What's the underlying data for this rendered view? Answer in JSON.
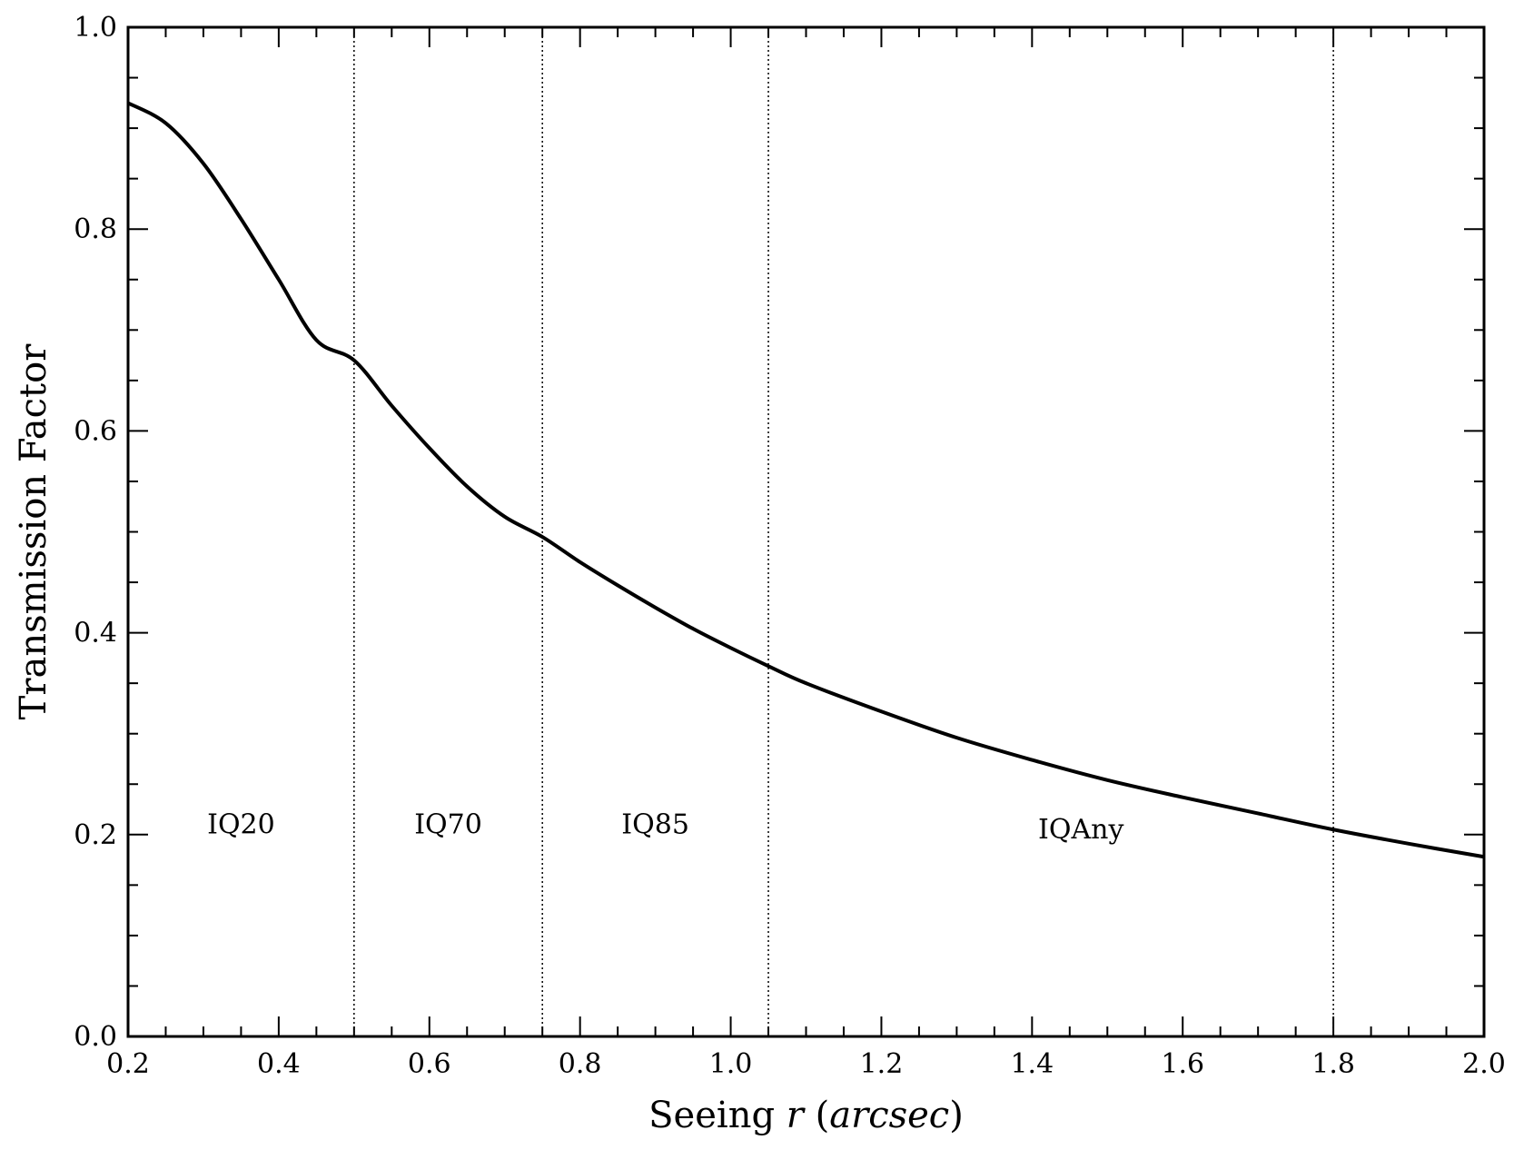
{
  "chart_data": {
    "type": "line",
    "title": "",
    "xlabel": "Seeing r (arcsec)",
    "xlabel_parts": {
      "prefix": "Seeing ",
      "var": "r",
      "open": " (",
      "unit": "arcsec",
      "close": ")"
    },
    "ylabel": "Transmission Factor",
    "xlim": [
      0.2,
      2.0
    ],
    "ylim": [
      0.0,
      1.0
    ],
    "grid": false,
    "x_ticks": [
      "0.2",
      "0.4",
      "0.6",
      "0.8",
      "1.0",
      "1.2",
      "1.4",
      "1.6",
      "1.8",
      "2.0"
    ],
    "y_ticks": [
      "0.0",
      "0.2",
      "0.4",
      "0.6",
      "0.8",
      "1.0"
    ],
    "series": [
      {
        "x": [
          0.2,
          0.25,
          0.3,
          0.35,
          0.4,
          0.45,
          0.5,
          0.55,
          0.6,
          0.65,
          0.7,
          0.75,
          0.8,
          0.85,
          0.9,
          0.95,
          1.0,
          1.05,
          1.1,
          1.2,
          1.3,
          1.4,
          1.5,
          1.6,
          1.7,
          1.8,
          1.9,
          2.0
        ],
        "y": [
          0.925,
          0.905,
          0.865,
          0.81,
          0.75,
          0.69,
          0.67,
          0.625,
          0.583,
          0.545,
          0.515,
          0.495,
          0.47,
          0.447,
          0.425,
          0.404,
          0.385,
          0.367,
          0.35,
          0.322,
          0.296,
          0.274,
          0.254,
          0.237,
          0.221,
          0.205,
          0.191,
          0.178
        ]
      }
    ],
    "boundaries": [
      0.5,
      0.75,
      1.05,
      1.8
    ],
    "regions": [
      {
        "label": "IQ20",
        "x": 0.35,
        "y": 0.21
      },
      {
        "label": "IQ70",
        "x": 0.625,
        "y": 0.21
      },
      {
        "label": "IQ85",
        "x": 0.9,
        "y": 0.21
      },
      {
        "label": "IQAny",
        "x": 1.465,
        "y": 0.205
      }
    ],
    "colors": {
      "line": "#000000",
      "axes": "#000000",
      "background": "#ffffff"
    }
  }
}
